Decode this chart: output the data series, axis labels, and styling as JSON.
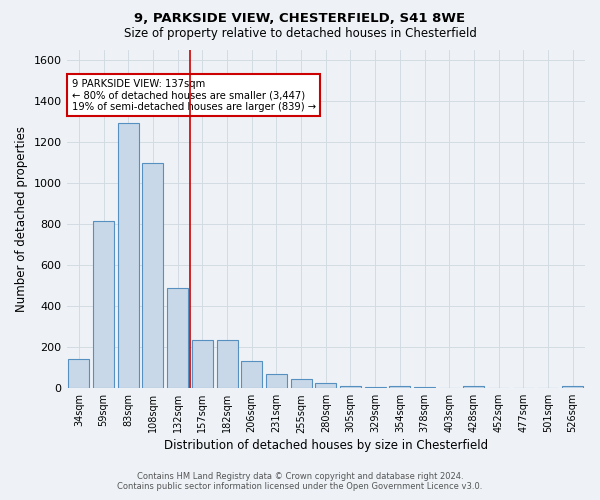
{
  "title1": "9, PARKSIDE VIEW, CHESTERFIELD, S41 8WE",
  "title2": "Size of property relative to detached houses in Chesterfield",
  "xlabel": "Distribution of detached houses by size in Chesterfield",
  "ylabel": "Number of detached properties",
  "footer1": "Contains HM Land Registry data © Crown copyright and database right 2024.",
  "footer2": "Contains public sector information licensed under the Open Government Licence v3.0.",
  "categories": [
    "34sqm",
    "59sqm",
    "83sqm",
    "108sqm",
    "132sqm",
    "157sqm",
    "182sqm",
    "206sqm",
    "231sqm",
    "255sqm",
    "280sqm",
    "305sqm",
    "329sqm",
    "354sqm",
    "378sqm",
    "403sqm",
    "428sqm",
    "452sqm",
    "477sqm",
    "501sqm",
    "526sqm"
  ],
  "values": [
    140,
    815,
    1295,
    1100,
    490,
    237,
    237,
    133,
    70,
    43,
    25,
    12,
    8,
    12,
    5,
    3,
    12,
    0,
    0,
    0,
    12
  ],
  "bar_color": "#c8d8e8",
  "bar_edge_color": "#5590c0",
  "bar_edge_width": 0.8,
  "grid_color": "#d0d8e0",
  "background_color": "#eef2f6",
  "red_line_x": 4.5,
  "red_line_color": "#cc0000",
  "annotation_text": "9 PARKSIDE VIEW: 137sqm\n← 80% of detached houses are smaller (3,447)\n19% of semi-detached houses are larger (839) →",
  "annotation_box_color": "white",
  "annotation_box_edge": "#cc0000",
  "ylim": [
    0,
    1650
  ],
  "yticks": [
    0,
    200,
    400,
    600,
    800,
    1000,
    1200,
    1400,
    1600
  ]
}
